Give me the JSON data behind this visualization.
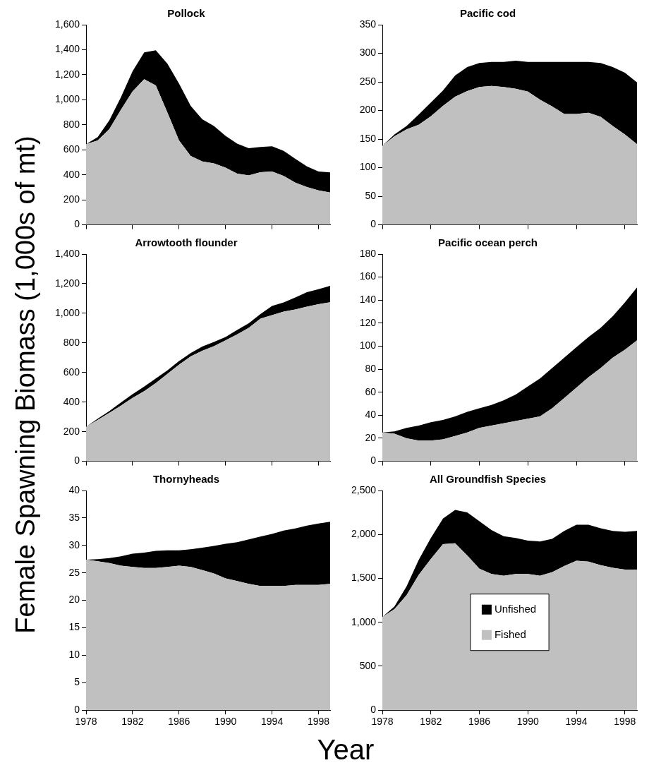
{
  "chart_data": [
    {
      "type": "area",
      "title": "Pollock",
      "ylabel": "Female Spawning Biomass (1,000s of mt)",
      "stacked": true,
      "tick_labels": "y",
      "grid": false,
      "marker": "none",
      "x": [
        1978,
        1979,
        1980,
        1981,
        1982,
        1983,
        1984,
        1985,
        1986,
        1987,
        1988,
        1989,
        1990,
        1991,
        1992,
        1993,
        1994,
        1995,
        1996,
        1997,
        1998,
        1999
      ],
      "xlim": [
        1978,
        1999
      ],
      "xticks": [
        1978,
        1982,
        1986,
        1990,
        1994,
        1998
      ],
      "ylim": [
        0,
        1600
      ],
      "yticks": [
        0,
        200,
        400,
        600,
        800,
        {
          "value": 1000,
          "label": "1,000"
        },
        {
          "value": 1200,
          "label": "1,200"
        },
        {
          "value": 1400,
          "label": "1,400"
        },
        {
          "value": 1600,
          "label": "1,600"
        }
      ],
      "series": [
        {
          "color": "#c0c0c0",
          "values": [
            645,
            675,
            765,
            920,
            1067,
            1164,
            1115,
            898,
            675,
            551,
            507,
            492,
            457,
            409,
            395,
            421,
            427,
            391,
            338,
            302,
            276,
            258
          ]
        },
        {
          "color": "#000000",
          "values": [
            0,
            27,
            70,
            100,
            160,
            214,
            281,
            391,
            454,
            400,
            337,
            299,
            254,
            240,
            218,
            201,
            201,
            201,
            190,
            166,
            151,
            162
          ]
        }
      ]
    },
    {
      "type": "area",
      "title": "Pacific cod",
      "stacked": true,
      "tick_labels": "y",
      "grid": false,
      "marker": "none",
      "x": [
        1978,
        1979,
        1980,
        1981,
        1982,
        1983,
        1984,
        1985,
        1986,
        1987,
        1988,
        1989,
        1990,
        1991,
        1992,
        1993,
        1994,
        1995,
        1996,
        1997,
        1998,
        1999
      ],
      "xlim": [
        1978,
        1999
      ],
      "xticks": [
        1978,
        1982,
        1986,
        1990,
        1994,
        1998
      ],
      "ylim": [
        0,
        350
      ],
      "yticks": [
        0,
        50,
        100,
        150,
        200,
        250,
        300,
        350
      ],
      "series": [
        {
          "color": "#c0c0c0",
          "values": [
            138,
            155,
            167,
            175,
            190,
            208,
            224,
            234,
            241,
            243,
            241,
            238,
            233,
            219,
            207,
            194,
            194,
            196,
            189,
            173,
            158,
            141
          ]
        },
        {
          "color": "#000000",
          "values": [
            0,
            3,
            6,
            18,
            24,
            27,
            37,
            42,
            42,
            42,
            44,
            49,
            52,
            66,
            78,
            91,
            91,
            89,
            94,
            103,
            108,
            108
          ]
        }
      ]
    },
    {
      "type": "area",
      "title": "Arrowtooth flounder",
      "stacked": true,
      "tick_labels": "y",
      "grid": false,
      "marker": "none",
      "x": [
        1978,
        1979,
        1980,
        1981,
        1982,
        1983,
        1984,
        1985,
        1986,
        1987,
        1988,
        1989,
        1990,
        1991,
        1992,
        1993,
        1994,
        1995,
        1996,
        1997,
        1998,
        1999
      ],
      "xlim": [
        1978,
        1999
      ],
      "xticks": [
        1978,
        1982,
        1986,
        1990,
        1994,
        1998
      ],
      "ylim": [
        0,
        1400
      ],
      "yticks": [
        0,
        200,
        400,
        600,
        800,
        {
          "value": 1000,
          "label": "1,000"
        },
        {
          "value": 1200,
          "label": "1,200"
        },
        {
          "value": 1400,
          "label": "1,400"
        }
      ],
      "series": [
        {
          "color": "#c0c0c0",
          "values": [
            233,
            280,
            327,
            376,
            428,
            474,
            529,
            591,
            653,
            708,
            747,
            778,
            817,
            858,
            902,
            964,
            988,
            1011,
            1026,
            1045,
            1061,
            1075
          ]
        },
        {
          "color": "#000000",
          "values": [
            0,
            8,
            12,
            21,
            26,
            31,
            31,
            23,
            24,
            23,
            28,
            28,
            23,
            29,
            31,
            31,
            62,
            62,
            81,
            98,
            102,
            110
          ]
        }
      ]
    },
    {
      "type": "area",
      "title": "Pacific ocean perch",
      "stacked": true,
      "tick_labels": "y",
      "grid": false,
      "marker": "none",
      "x": [
        1978,
        1979,
        1980,
        1981,
        1982,
        1983,
        1984,
        1985,
        1986,
        1987,
        1988,
        1989,
        1990,
        1991,
        1992,
        1993,
        1994,
        1995,
        1996,
        1997,
        1998,
        1999
      ],
      "xlim": [
        1978,
        1999
      ],
      "xticks": [
        1978,
        1982,
        1986,
        1990,
        1994,
        1998
      ],
      "ylim": [
        0,
        180
      ],
      "yticks": [
        0,
        20,
        40,
        60,
        80,
        100,
        120,
        140,
        160,
        180
      ],
      "series": [
        {
          "color": "#c0c0c0",
          "values": [
            25,
            24,
            20,
            18,
            18,
            19,
            22,
            25,
            29,
            31,
            33,
            35,
            37,
            39,
            46,
            55,
            64,
            73,
            81,
            90,
            97,
            105
          ]
        },
        {
          "color": "#000000",
          "values": [
            0,
            2,
            9,
            13,
            16,
            17,
            17,
            18,
            17,
            18,
            20,
            23,
            28,
            33,
            35,
            35,
            35,
            35,
            35,
            36,
            41,
            46
          ]
        }
      ]
    },
    {
      "type": "area",
      "title": "Thornyheads",
      "xlabel": "Year",
      "stacked": true,
      "grid": false,
      "marker": "none",
      "x": [
        1978,
        1979,
        1980,
        1981,
        1982,
        1983,
        1984,
        1985,
        1986,
        1987,
        1988,
        1989,
        1990,
        1991,
        1992,
        1993,
        1994,
        1995,
        1996,
        1997,
        1998,
        1999
      ],
      "xlim": [
        1978,
        1999
      ],
      "xticks": [
        1978,
        1982,
        1986,
        1990,
        1994,
        1998
      ],
      "ylim": [
        0,
        40
      ],
      "yticks": [
        0,
        5,
        10,
        15,
        20,
        25,
        30,
        35,
        40
      ],
      "series": [
        {
          "color": "#c0c0c0",
          "values": [
            27.4,
            27.1,
            26.8,
            26.3,
            26.1,
            25.9,
            25.9,
            26.1,
            26.3,
            26.1,
            25.5,
            24.9,
            24.0,
            23.5,
            23.0,
            22.6,
            22.6,
            22.6,
            22.8,
            22.8,
            22.8,
            23.0
          ]
        },
        {
          "color": "#000000",
          "values": [
            0,
            0.4,
            0.9,
            1.7,
            2.4,
            2.8,
            3.1,
            3.0,
            2.8,
            3.2,
            4.1,
            5.0,
            6.3,
            7.1,
            8.1,
            9.0,
            9.5,
            10.1,
            10.3,
            10.8,
            11.2,
            11.3
          ]
        }
      ]
    },
    {
      "type": "area",
      "title": "All Groundfish Species",
      "stacked": true,
      "grid": false,
      "marker": "none",
      "legend": "center",
      "x": [
        1978,
        1979,
        1980,
        1981,
        1982,
        1983,
        1984,
        1985,
        1986,
        1987,
        1988,
        1989,
        1990,
        1991,
        1992,
        1993,
        1994,
        1995,
        1996,
        1997,
        1998,
        1999
      ],
      "xlim": [
        1978,
        1999
      ],
      "xticks": [
        1978,
        1982,
        1986,
        1990,
        1994,
        1998
      ],
      "ylim": [
        0,
        2500
      ],
      "yticks": [
        0,
        500,
        {
          "value": 1000,
          "label": "1,000"
        },
        {
          "value": 1500,
          "label": "1,500"
        },
        {
          "value": 2000,
          "label": "2,000"
        },
        {
          "value": 2500,
          "label": "2,500"
        }
      ],
      "series": [
        {
          "name": "Fished",
          "color": "#c0c0c0",
          "values": [
            1060,
            1150,
            1310,
            1540,
            1720,
            1890,
            1900,
            1760,
            1610,
            1550,
            1530,
            1550,
            1550,
            1530,
            1570,
            1640,
            1700,
            1690,
            1650,
            1620,
            1600,
            1600
          ]
        },
        {
          "name": "Unfished",
          "color": "#000000",
          "values": [
            0,
            30,
            100,
            170,
            240,
            290,
            380,
            490,
            540,
            500,
            450,
            410,
            380,
            390,
            380,
            400,
            410,
            420,
            420,
            420,
            430,
            440
          ]
        }
      ]
    }
  ]
}
